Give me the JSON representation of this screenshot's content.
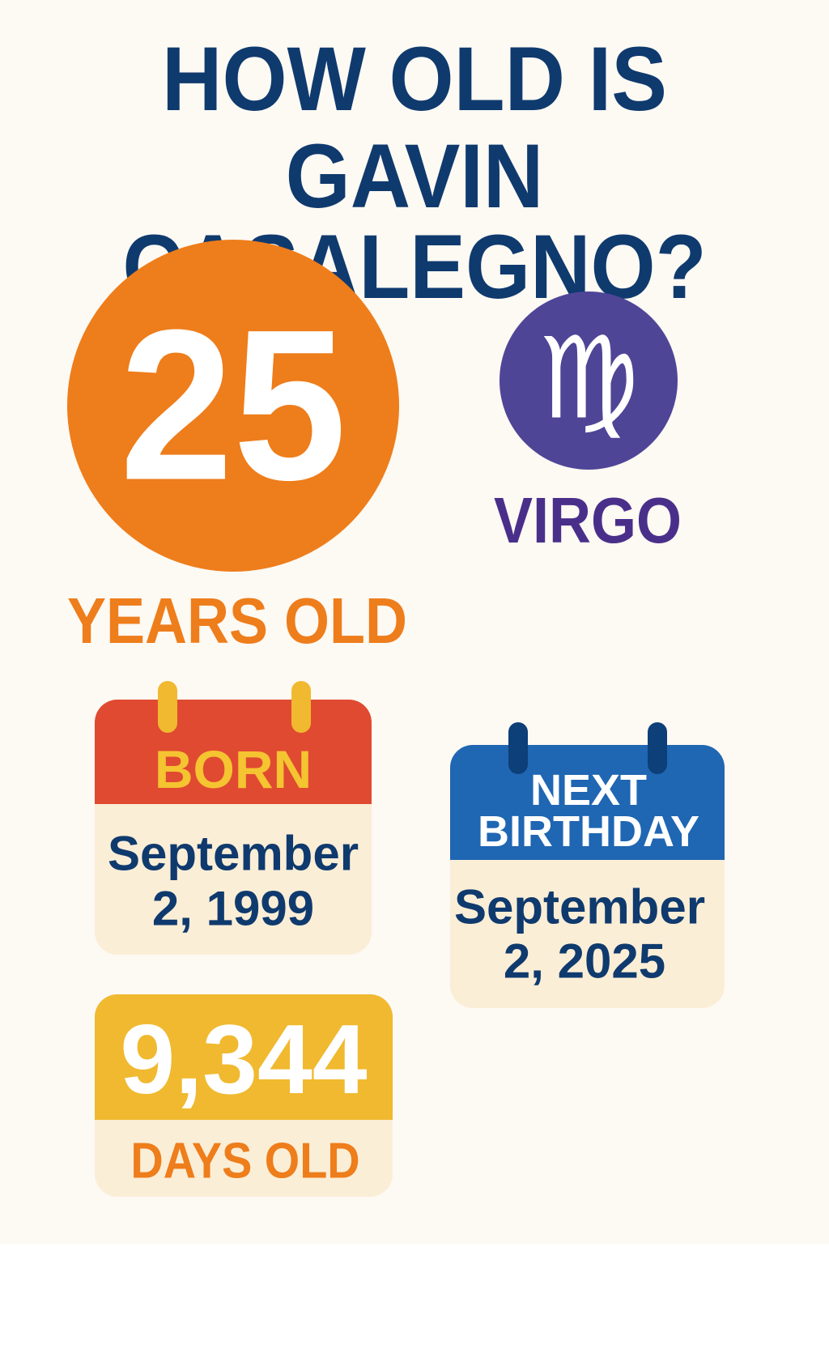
{
  "title": {
    "line1": "HOW OLD IS",
    "line2": "GAVIN CASALEGNO?"
  },
  "age": {
    "value": "25",
    "label": "YEARS OLD"
  },
  "zodiac": {
    "symbol": "♍",
    "label": "VIRGO",
    "icon": "virgo-icon"
  },
  "born": {
    "header": "BORN",
    "line1": "September",
    "line2": "2, 1999"
  },
  "next_birthday": {
    "header_line1": "NEXT",
    "header_line2": "BIRTHDAY",
    "line1": "September",
    "line2": "2, 2025"
  },
  "days": {
    "value": "9,344",
    "label": "DAYS OLD"
  },
  "colors": {
    "navy": "#0f3a6e",
    "orange": "#ee7d1b",
    "purple": "#4f4597",
    "red": "#e04a31",
    "yellow": "#f0b92f",
    "blue": "#1f66b3",
    "cream": "#fbeed6"
  }
}
